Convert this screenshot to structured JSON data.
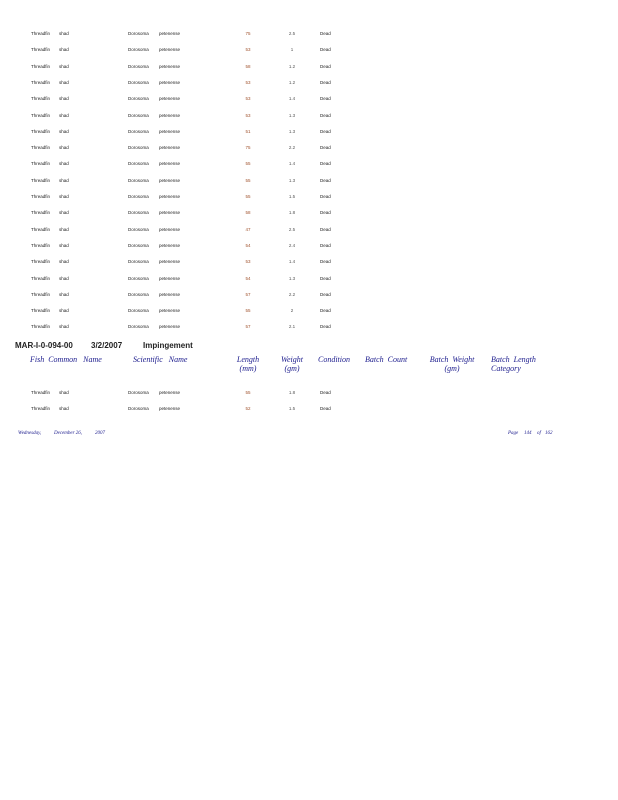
{
  "rows_top": [
    [
      "Threadfin",
      "shad",
      "Dorosoma",
      "petenense",
      "75",
      "2.5",
      "Dead"
    ],
    [
      "Threadfin",
      "shad",
      "Dorosoma",
      "petenense",
      "53",
      "1",
      "Dead"
    ],
    [
      "Threadfin",
      "shad",
      "Dorosoma",
      "petenense",
      "58",
      "1.2",
      "Dead"
    ],
    [
      "Threadfin",
      "shad",
      "Dorosoma",
      "petenense",
      "53",
      "1.2",
      "Dead"
    ],
    [
      "Threadfin",
      "shad",
      "Dorosoma",
      "petenense",
      "53",
      "1.4",
      "Dead"
    ],
    [
      "Threadfin",
      "shad",
      "Dorosoma",
      "petenense",
      "53",
      "1.3",
      "Dead"
    ],
    [
      "Threadfin",
      "shad",
      "Dorosoma",
      "petenense",
      "51",
      "1.3",
      "Dead"
    ],
    [
      "Threadfin",
      "shad",
      "Dorosoma",
      "petenense",
      "75",
      "2.2",
      "Dead"
    ],
    [
      "Threadfin",
      "shad",
      "Dorosoma",
      "petenense",
      "55",
      "1.4",
      "Dead"
    ],
    [
      "Threadfin",
      "shad",
      "Dorosoma",
      "petenense",
      "55",
      "1.3",
      "Dead"
    ],
    [
      "Threadfin",
      "shad",
      "Dorosoma",
      "petenense",
      "55",
      "1.5",
      "Dead"
    ],
    [
      "Threadfin",
      "shad",
      "Dorosoma",
      "petenense",
      "58",
      "1.8",
      "Dead"
    ],
    [
      "Threadfin",
      "shad",
      "Dorosoma",
      "petenense",
      "47",
      "2.5",
      "Dead"
    ],
    [
      "Threadfin",
      "shad",
      "Dorosoma",
      "petenense",
      "54",
      "2.4",
      "Dead"
    ],
    [
      "Threadfin",
      "shad",
      "Dorosoma",
      "petenense",
      "53",
      "1.4",
      "Dead"
    ],
    [
      "Threadfin",
      "shad",
      "Dorosoma",
      "petenense",
      "54",
      "1.3",
      "Dead"
    ],
    [
      "Threadfin",
      "shad",
      "Dorosoma",
      "petenense",
      "57",
      "2.2",
      "Dead"
    ],
    [
      "Threadfin",
      "shad",
      "Dorosoma",
      "petenense",
      "55",
      "2",
      "Dead"
    ],
    [
      "Threadfin",
      "shad",
      "Dorosoma",
      "petenense",
      "57",
      "2.1",
      "Dead"
    ]
  ],
  "group": {
    "id": "MAR-I-0-094-00",
    "date": "3/2/2007",
    "type": "Impingement"
  },
  "columns": [
    "Fish  Common   Name",
    "Scientific   Name",
    "Length\n(mm)",
    "Weight\n(gm)",
    "Condition",
    "Batch  Count",
    "Batch  Weight\n(gm)",
    "Batch  Length\nCategory"
  ],
  "rows_bottom": [
    [
      "Threadfin",
      "shad",
      "Dorosoma",
      "petenense",
      "55",
      "1.8",
      "Dead"
    ],
    [
      "Threadfin",
      "shad",
      "Dorosoma",
      "petenense",
      "52",
      "1.5",
      "Dead"
    ]
  ],
  "footer": {
    "day": "Wednesday,",
    "date": "December 26,",
    "year": "2007",
    "page_label": "Page",
    "page": "144",
    "of_label": "of",
    "total": "162"
  }
}
